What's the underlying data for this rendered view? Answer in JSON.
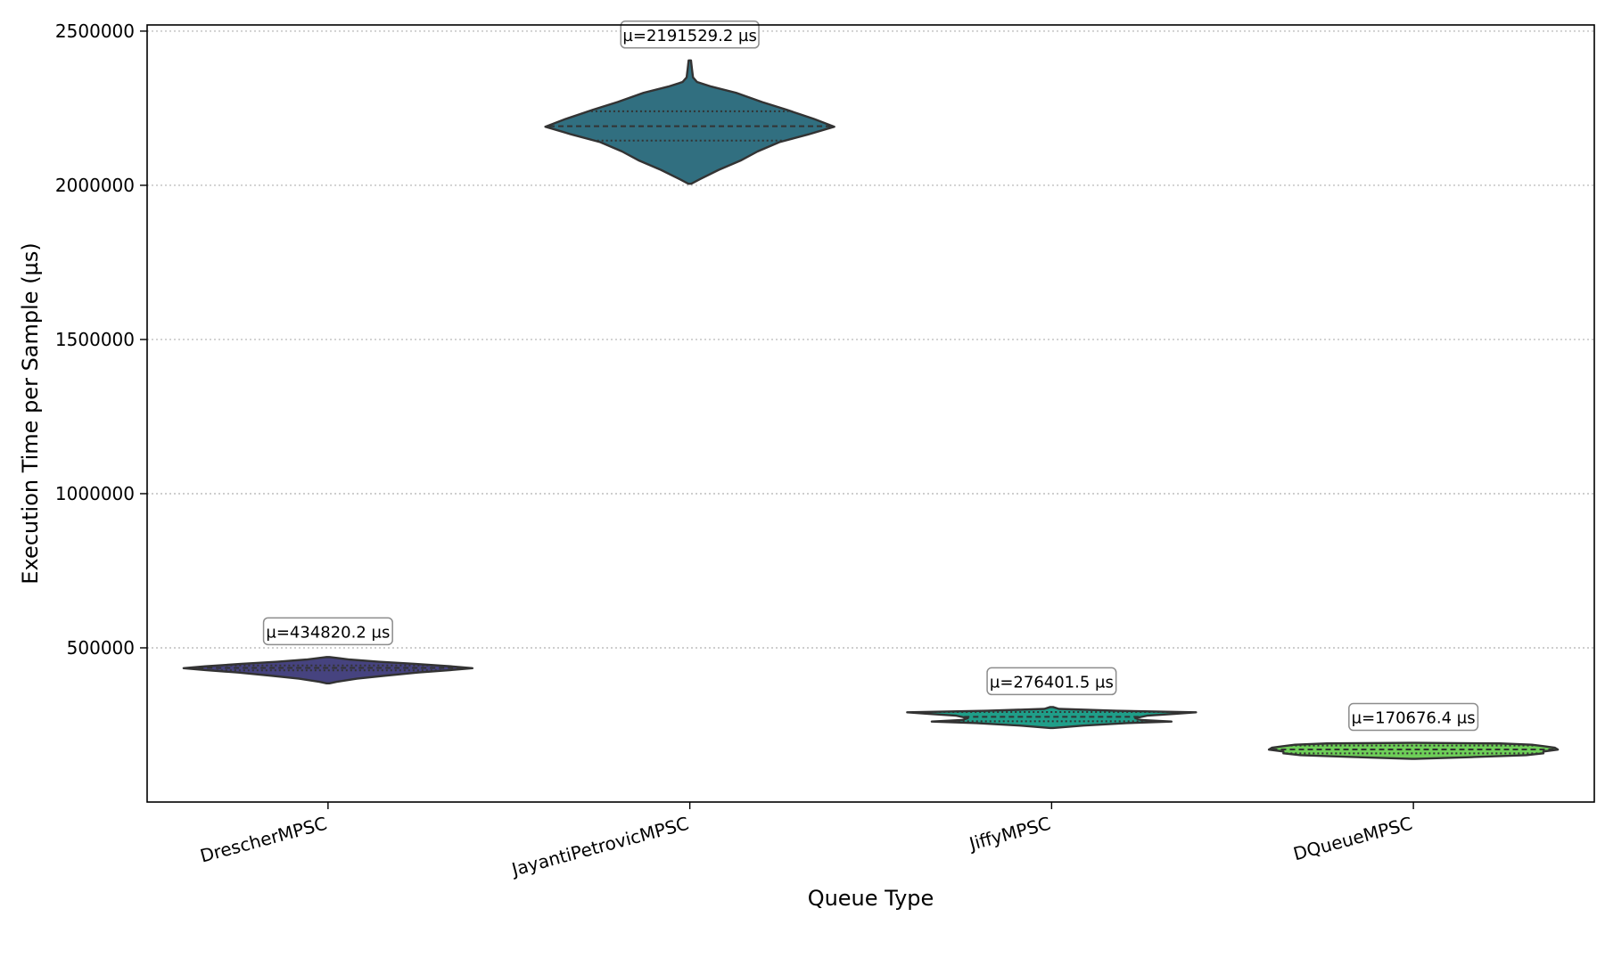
{
  "chart_data": {
    "type": "violin",
    "title": "",
    "xlabel": "Queue Type",
    "ylabel": "Execution Time per Sample (µs)",
    "ylim": [
      0,
      2520000
    ],
    "yticks": [
      500000,
      1000000,
      1500000,
      2000000,
      2500000
    ],
    "ytick_labels": [
      "500000",
      "1000000",
      "1500000",
      "2000000",
      "2500000"
    ],
    "grid": "y-dotted",
    "palette": "viridis",
    "categories": [
      "DrescherMPSC",
      "JayantiPetrovicMPSC",
      "JiffyMPSC",
      "DQueueMPSC"
    ],
    "series": [
      {
        "category": "DrescherMPSC",
        "mean": 434820.2,
        "annotation": "µ=434820.2 µs",
        "color": "#46437f",
        "min": 385000,
        "max": 470000,
        "quartiles": [
          427000,
          434820,
          443000
        ],
        "profile": [
          [
            385000,
            0.01
          ],
          [
            390000,
            0.06
          ],
          [
            400000,
            0.2
          ],
          [
            410000,
            0.4
          ],
          [
            420000,
            0.62
          ],
          [
            428000,
            0.85
          ],
          [
            434000,
            1.0
          ],
          [
            440000,
            0.85
          ],
          [
            448000,
            0.6
          ],
          [
            455000,
            0.35
          ],
          [
            462000,
            0.15
          ],
          [
            470000,
            0.01
          ]
        ]
      },
      {
        "category": "JayantiPetrovicMPSC",
        "mean": 2191529.2,
        "annotation": "µ=2191529.2 µs",
        "color": "#316f80",
        "min": 2005000,
        "max": 2405000,
        "quartiles": [
          2145000,
          2191529,
          2240000
        ],
        "profile": [
          [
            2005000,
            0.01
          ],
          [
            2020000,
            0.07
          ],
          [
            2050000,
            0.2
          ],
          [
            2080000,
            0.35
          ],
          [
            2110000,
            0.47
          ],
          [
            2140000,
            0.62
          ],
          [
            2165000,
            0.82
          ],
          [
            2190000,
            1.0
          ],
          [
            2215000,
            0.86
          ],
          [
            2245000,
            0.67
          ],
          [
            2270000,
            0.5
          ],
          [
            2300000,
            0.32
          ],
          [
            2320000,
            0.15
          ],
          [
            2335000,
            0.05
          ],
          [
            2350000,
            0.022
          ],
          [
            2380000,
            0.014
          ],
          [
            2405000,
            0.008
          ]
        ]
      },
      {
        "category": "JiffyMPSC",
        "mean": 276401.5,
        "annotation": "µ=276401.5 µs",
        "color": "#1f9e89",
        "min": 240000,
        "max": 308000,
        "quartiles": [
          262000,
          276401,
          292000
        ],
        "profile": [
          [
            240000,
            0.01
          ],
          [
            248000,
            0.22
          ],
          [
            256000,
            0.52
          ],
          [
            261000,
            0.83
          ],
          [
            266000,
            0.62
          ],
          [
            272000,
            0.58
          ],
          [
            280000,
            0.66
          ],
          [
            286000,
            0.85
          ],
          [
            291000,
            1.0
          ],
          [
            296000,
            0.45
          ],
          [
            302000,
            0.05
          ],
          [
            308000,
            0.01
          ]
        ]
      },
      {
        "category": "DQueueMPSC",
        "mean": 170676.4,
        "annotation": "µ=170676.4 µs",
        "color": "#6ece58",
        "min": 140000,
        "max": 192000,
        "quartiles": [
          158000,
          170676,
          183000
        ],
        "profile": [
          [
            140000,
            0.01
          ],
          [
            146000,
            0.42
          ],
          [
            152000,
            0.78
          ],
          [
            158000,
            0.9
          ],
          [
            164000,
            0.9
          ],
          [
            170000,
            1.0
          ],
          [
            176000,
            0.98
          ],
          [
            181000,
            0.9
          ],
          [
            186000,
            0.82
          ],
          [
            190000,
            0.6
          ],
          [
            192000,
            0.01
          ]
        ]
      }
    ]
  }
}
